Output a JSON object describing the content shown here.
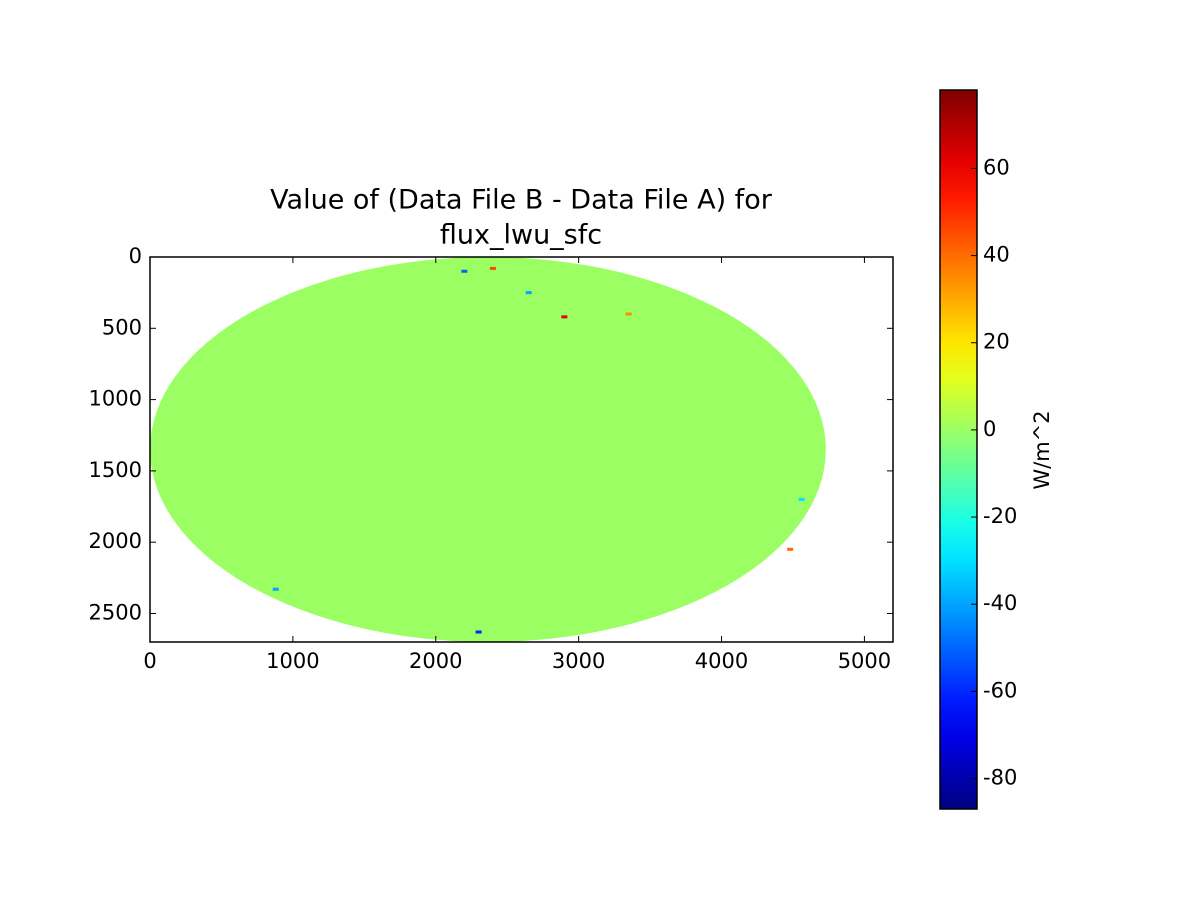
{
  "chart_data": {
    "type": "heatmap",
    "title": [
      "Value of (Data File B - Data File A) for",
      "flux_lwu_sfc"
    ],
    "xlim": [
      0,
      5200
    ],
    "xticks": [
      0,
      1000,
      2000,
      3000,
      4000,
      5000
    ],
    "ylim": [
      2700,
      0
    ],
    "yticks": [
      0,
      500,
      1000,
      1500,
      2000,
      2500
    ],
    "colormap": "jet",
    "clim": [
      -87,
      78
    ],
    "cticks": [
      -80,
      -60,
      -40,
      -20,
      0,
      20,
      40,
      60
    ],
    "colorbar_label": "W/m^2",
    "disk": {
      "xlim": [
        0,
        4730
      ],
      "ylim": [
        0,
        2700
      ],
      "value": 0
    },
    "anomalies": {
      "x": [
        2900,
        2650,
        2400,
        4560,
        4480,
        880,
        2300,
        3350,
        2200
      ],
      "y": [
        420,
        250,
        80,
        1700,
        2050,
        2330,
        2630,
        400,
        100
      ],
      "values": [
        60,
        -40,
        45,
        -30,
        40,
        -40,
        -60,
        35,
        -50
      ]
    }
  }
}
